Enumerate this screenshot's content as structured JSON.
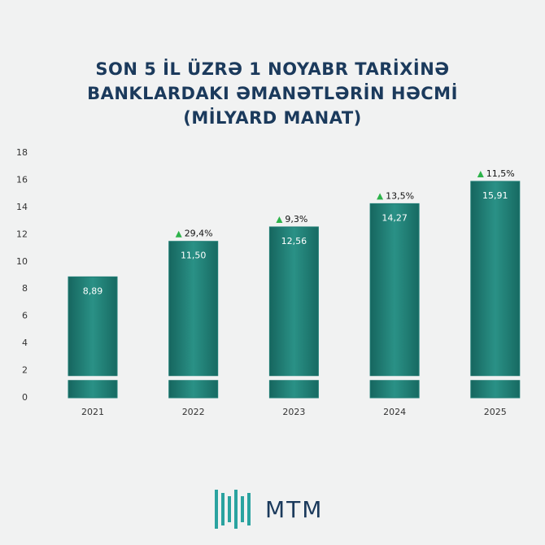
{
  "chart_data": {
    "type": "bar",
    "title": "SON 5 İL ÜZRƏ 1 NOYABR TARİXİNƏ BANKLARDAKI ƏMANƏTLƏRİN HƏCMİ (MİLYARD MANAT)",
    "categories": [
      "2021",
      "2022",
      "2023",
      "2024",
      "2025"
    ],
    "values": [
      8.89,
      11.5,
      12.56,
      14.27,
      15.91
    ],
    "value_labels": [
      "8,89",
      "11,50",
      "12,56",
      "14,27",
      "15,91"
    ],
    "growth": {
      "values": [
        null,
        29.4,
        9.3,
        13.5,
        11.5
      ],
      "value_labels": [
        null,
        "29,4%",
        "9,3%",
        "13,5%",
        "11,5%"
      ]
    },
    "color": "#1f7d75",
    "ylim": [
      0,
      18
    ],
    "yticks": [
      0,
      2,
      4,
      6,
      8,
      10,
      12,
      14,
      16,
      18
    ],
    "grid": false
  },
  "logo": "MTM"
}
